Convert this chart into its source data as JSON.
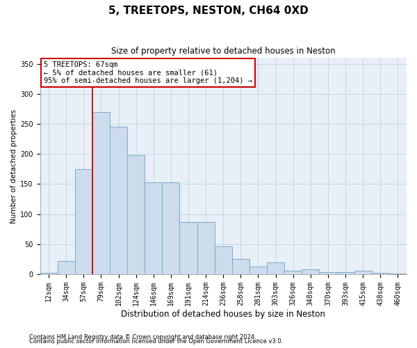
{
  "title": "5, TREETOPS, NESTON, CH64 0XD",
  "subtitle": "Size of property relative to detached houses in Neston",
  "xlabel": "Distribution of detached houses by size in Neston",
  "ylabel": "Number of detached properties",
  "footnote1": "Contains HM Land Registry data © Crown copyright and database right 2024.",
  "footnote2": "Contains public sector information licensed under the Open Government Licence v3.0.",
  "bar_labels": [
    "12sqm",
    "34sqm",
    "57sqm",
    "79sqm",
    "102sqm",
    "124sqm",
    "146sqm",
    "169sqm",
    "191sqm",
    "214sqm",
    "236sqm",
    "258sqm",
    "281sqm",
    "303sqm",
    "326sqm",
    "348sqm",
    "370sqm",
    "393sqm",
    "415sqm",
    "438sqm",
    "460sqm"
  ],
  "bar_values": [
    2,
    22,
    175,
    270,
    245,
    198,
    153,
    153,
    87,
    87,
    46,
    25,
    13,
    20,
    6,
    8,
    4,
    4,
    6,
    2,
    1
  ],
  "bar_color": "#ccdcec",
  "bar_edge_color": "#7aaac8",
  "grid_color": "#c8d4e0",
  "background_color": "#e8eff7",
  "vline_x": 2.5,
  "vline_color": "#cc0000",
  "annotation_line1": "5 TREETOPS: 67sqm",
  "annotation_line2": "← 5% of detached houses are smaller (61)",
  "annotation_line3": "95% of semi-detached houses are larger (1,204) →",
  "annotation_box_color": "#ffffff",
  "annotation_box_edge": "#cc0000",
  "ylim": [
    0,
    360
  ],
  "yticks": [
    0,
    50,
    100,
    150,
    200,
    250,
    300,
    350
  ],
  "title_fontsize": 11,
  "subtitle_fontsize": 8.5,
  "xlabel_fontsize": 8.5,
  "ylabel_fontsize": 7.5,
  "tick_fontsize": 7,
  "annot_fontsize": 7.5,
  "footnote_fontsize": 6
}
